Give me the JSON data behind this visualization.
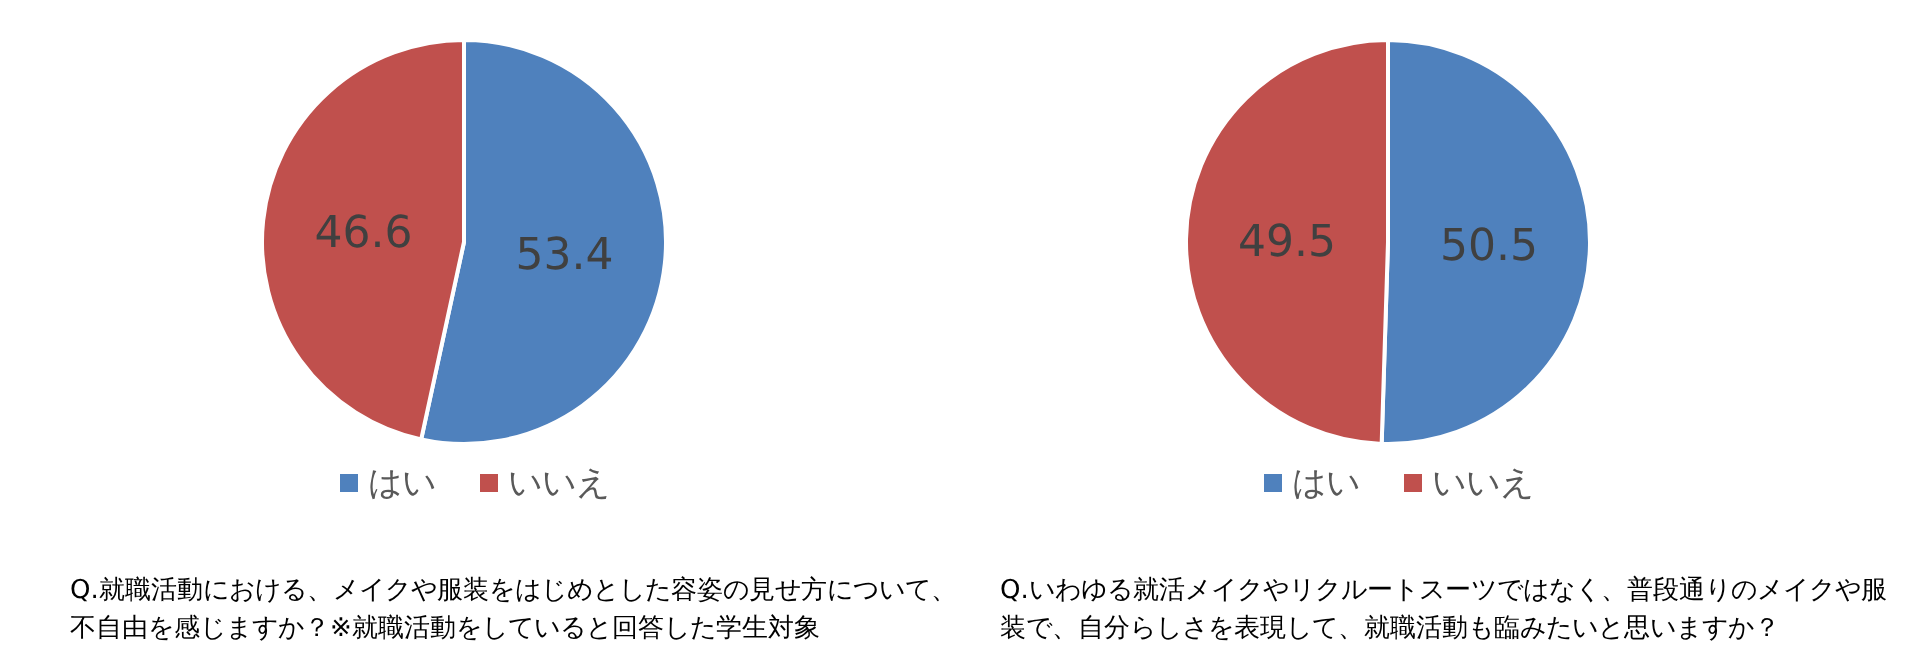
{
  "chart_data": [
    {
      "type": "pie",
      "categories": [
        "はい",
        "いいえ"
      ],
      "values": [
        53.4,
        46.6
      ],
      "colors": [
        "#4f81bd",
        "#c0504d"
      ],
      "data_labels": true,
      "legend": "bottom",
      "annotations": [
        "Q.就職活動における、メイクや服装をはじめとした容姿の見せ方について、不自由を感じますか？※就職活動をしていると回答した学生対象"
      ]
    },
    {
      "type": "pie",
      "categories": [
        "はい",
        "いいえ"
      ],
      "values": [
        50.5,
        49.5
      ],
      "colors": [
        "#4f81bd",
        "#c0504d"
      ],
      "data_labels": true,
      "legend": "bottom",
      "annotations": [
        "Q.いわゆる就活メイクやリクルートスーツではなく、普段通りのメイクや服装で、自分らしさを表現して、就職活動も臨みたいと思いますか？"
      ]
    }
  ]
}
